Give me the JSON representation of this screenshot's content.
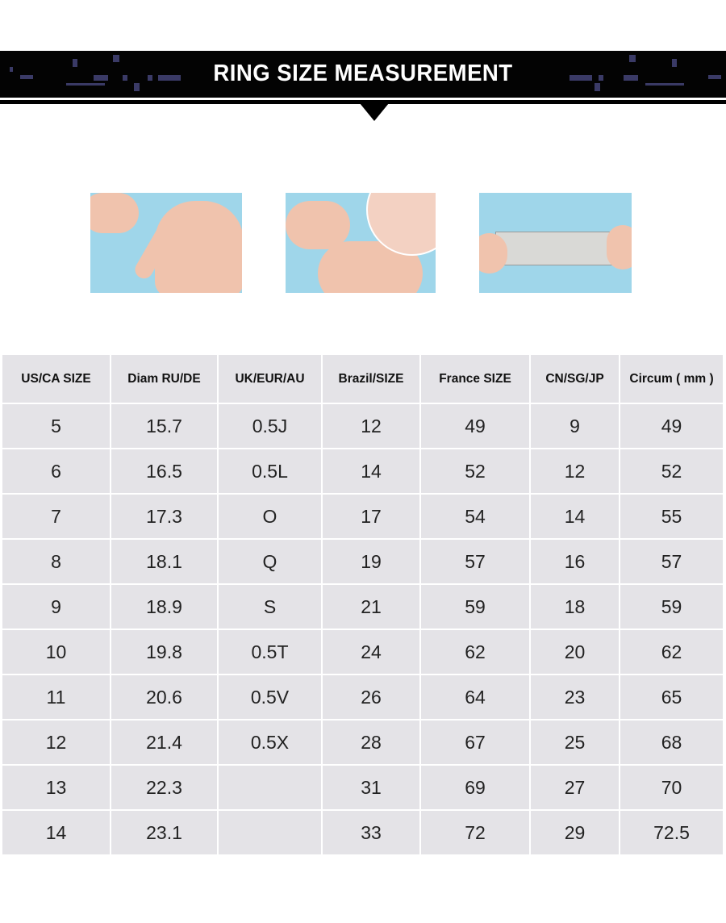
{
  "banner": {
    "title": "RING SIZE MEASUREMENT"
  },
  "photos": [
    {
      "icon": "hand-with-string-photo"
    },
    {
      "icon": "marking-string-with-pen-photo"
    },
    {
      "icon": "measuring-string-on-ruler-photo"
    }
  ],
  "table": {
    "headers": [
      "US/CA  SIZE",
      "Diam RU/DE",
      "UK/EUR/AU",
      "Brazil/SIZE",
      "France SIZE",
      "CN/SG/JP",
      "Circum ( mm )"
    ],
    "rows": [
      [
        "5",
        "15.7",
        "0.5J",
        "12",
        "49",
        "9",
        "49"
      ],
      [
        "6",
        "16.5",
        "0.5L",
        "14",
        "52",
        "12",
        "52"
      ],
      [
        "7",
        "17.3",
        "O",
        "17",
        "54",
        "14",
        "55"
      ],
      [
        "8",
        "18.1",
        "Q",
        "19",
        "57",
        "16",
        "57"
      ],
      [
        "9",
        "18.9",
        "S",
        "21",
        "59",
        "18",
        "59"
      ],
      [
        "10",
        "19.8",
        "0.5T",
        "24",
        "62",
        "20",
        "62"
      ],
      [
        "11",
        "20.6",
        "0.5V",
        "26",
        "64",
        "23",
        "65"
      ],
      [
        "12",
        "21.4",
        "0.5X",
        "28",
        "67",
        "25",
        "68"
      ],
      [
        "13",
        "22.3",
        "",
        "31",
        "69",
        "27",
        "70"
      ],
      [
        "14",
        "23.1",
        "",
        "33",
        "72",
        "29",
        "72.5"
      ]
    ]
  },
  "colors": {
    "banner": "#030303",
    "cell": "#e4e3e7",
    "photo_bg": "#9fd6ea"
  }
}
